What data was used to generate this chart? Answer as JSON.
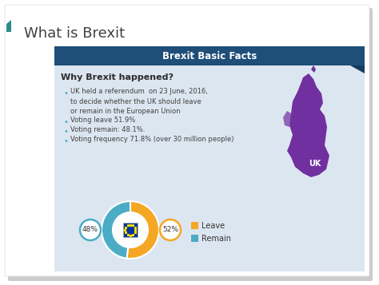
{
  "title": "What is Brexit",
  "card_title": "Brexit Basic Facts",
  "card_title_bg": "#1f4e79",
  "card_title_color": "#ffffff",
  "card_bg": "#dce6f0",
  "why_title": "Why Brexit happened?",
  "bullets": [
    "UK held a referendum  on 23 June, 2016,\nto decide whether the UK should leave\nor remain in the European Union",
    "Voting leave 51.9%",
    "Voting remain: 48.1%.",
    "Voting frequency 71.8% (over 30 million people)"
  ],
  "leave_pct": 52,
  "remain_pct": 48,
  "leave_label": "52%",
  "remain_label": "48%",
  "leave_color": "#f5a623",
  "remain_color": "#4bacc6",
  "legend_leave": "Leave",
  "legend_remain": "Remain",
  "uk_color": "#7030a0",
  "uk_label": "UK",
  "accent_color": "#2e8b8b",
  "fig_bg": "#ffffff"
}
